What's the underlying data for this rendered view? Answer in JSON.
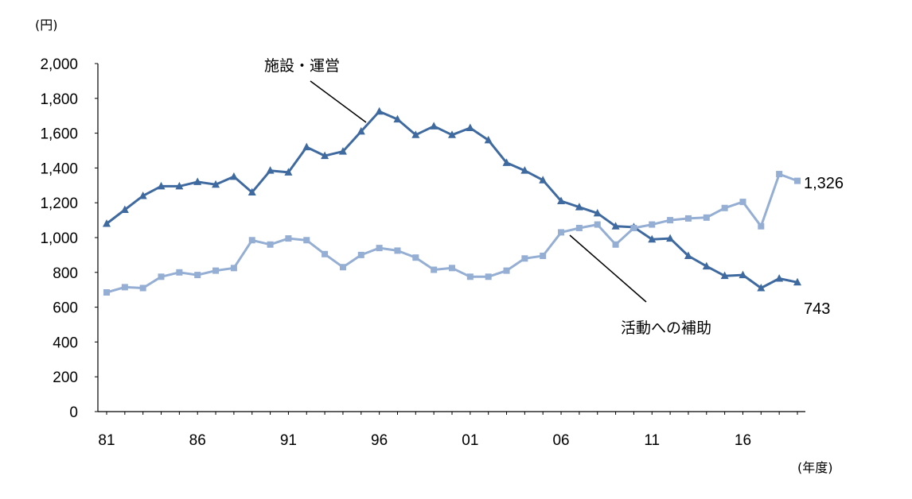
{
  "chart_data": {
    "type": "line",
    "y_unit": "(円)",
    "x_unit": "(年度)",
    "ylim": [
      0,
      2000
    ],
    "y_ticks": [
      0,
      200,
      400,
      600,
      800,
      1000,
      1200,
      1400,
      1600,
      1800,
      2000
    ],
    "y_tick_labels": [
      "0",
      "200",
      "400",
      "600",
      "800",
      "1,000",
      "1,200",
      "1,400",
      "1,600",
      "1,800",
      "2,000"
    ],
    "x": [
      1981,
      1982,
      1983,
      1984,
      1985,
      1986,
      1987,
      1988,
      1989,
      1990,
      1991,
      1992,
      1993,
      1994,
      1995,
      1996,
      1997,
      1998,
      1999,
      2000,
      2001,
      2002,
      2003,
      2004,
      2005,
      2006,
      2007,
      2008,
      2009,
      2010,
      2011,
      2012,
      2013,
      2014,
      2015,
      2016,
      2017,
      2018,
      2019
    ],
    "x_ticks": [
      1981,
      1986,
      1991,
      1996,
      2001,
      2006,
      2011,
      2016
    ],
    "x_tick_labels": [
      "81",
      "86",
      "91",
      "96",
      "01",
      "06",
      "11",
      "16"
    ],
    "grid": false,
    "series": [
      {
        "name": "施設・運営",
        "color": "#3f6aa0",
        "marker": "triangle",
        "values": [
          1080,
          1160,
          1240,
          1295,
          1295,
          1320,
          1305,
          1350,
          1260,
          1385,
          1375,
          1520,
          1470,
          1495,
          1610,
          1725,
          1680,
          1590,
          1640,
          1590,
          1630,
          1560,
          1430,
          1385,
          1330,
          1210,
          1175,
          1140,
          1065,
          1060,
          990,
          995,
          895,
          835,
          780,
          785,
          710,
          765,
          743
        ],
        "end_label": "743"
      },
      {
        "name": "活動への補助",
        "color": "#95aed4",
        "marker": "square",
        "values": [
          685,
          715,
          710,
          775,
          800,
          785,
          810,
          825,
          985,
          960,
          995,
          985,
          905,
          830,
          900,
          940,
          925,
          885,
          815,
          825,
          775,
          775,
          810,
          880,
          895,
          1030,
          1055,
          1075,
          960,
          1055,
          1075,
          1100,
          1110,
          1115,
          1170,
          1205,
          1065,
          1365,
          1326
        ],
        "end_label": "1,326"
      }
    ]
  }
}
